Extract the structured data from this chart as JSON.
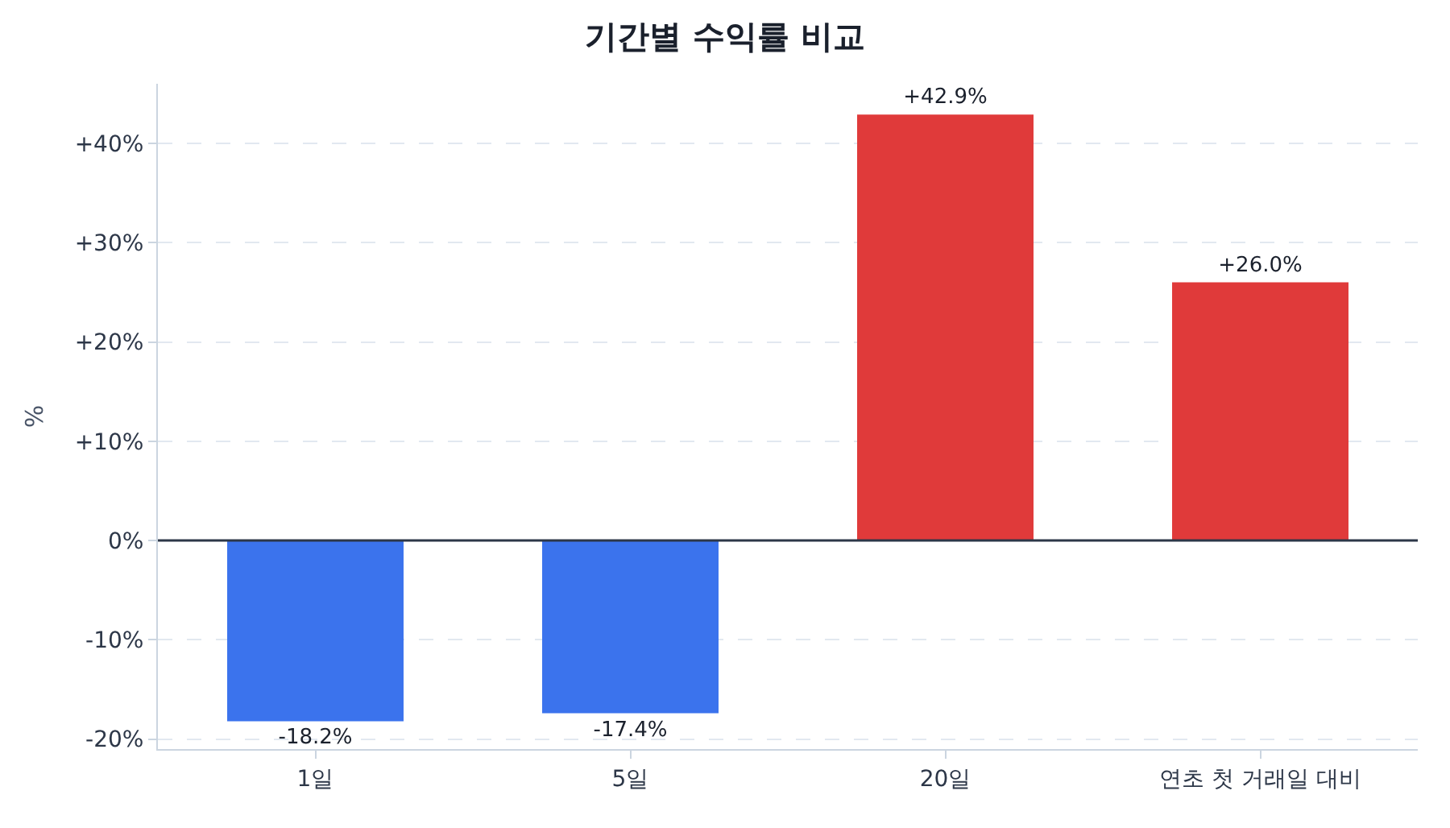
{
  "chart_data": {
    "type": "bar",
    "title": "기간별 수익률 비교",
    "ylabel": "%",
    "categories": [
      "1일",
      "5일",
      "20일",
      "연초 첫 거래일 대비"
    ],
    "values": [
      -18.2,
      -17.4,
      42.9,
      26.0
    ],
    "colors": [
      "#3b73ed",
      "#3b73ed",
      "#e03a3a",
      "#e03a3a"
    ],
    "value_labels": [
      "-18.2%",
      "-17.4%",
      "+42.9%",
      "+26.0%"
    ],
    "ylim": [
      -21,
      46
    ],
    "yticks": [
      {
        "value": -20,
        "label": "-20%"
      },
      {
        "value": -10,
        "label": "-10%"
      },
      {
        "value": 0,
        "label": "0%"
      },
      {
        "value": 10,
        "label": "+10%"
      },
      {
        "value": 20,
        "label": "+20%"
      },
      {
        "value": 30,
        "label": "+30%"
      },
      {
        "value": 40,
        "label": "+40%"
      }
    ],
    "ref_lines": [
      {
        "axis": "y",
        "value": 0,
        "color": "#2d3748"
      }
    ],
    "grid": "y"
  }
}
